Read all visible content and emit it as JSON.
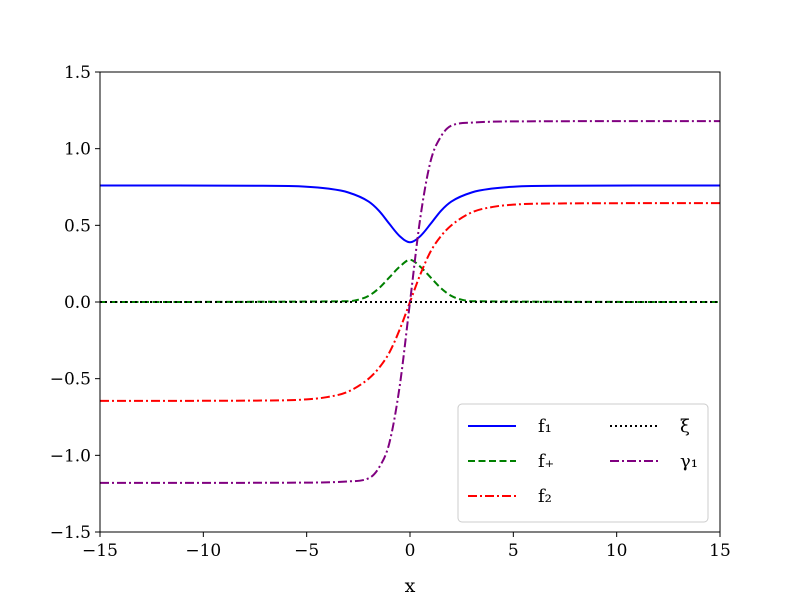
{
  "chart_data": {
    "type": "line",
    "title": "",
    "xlabel": "x",
    "ylabel": "",
    "xlim": [
      -15,
      15
    ],
    "ylim": [
      -1.5,
      1.5
    ],
    "x_ticks": [
      -15,
      -10,
      -5,
      0,
      5,
      10,
      15
    ],
    "x_tick_labels": [
      "−15",
      "−10",
      "−5",
      "0",
      "5",
      "10",
      "15"
    ],
    "y_ticks": [
      -1.5,
      -1.0,
      -0.5,
      0.0,
      0.5,
      1.0,
      1.5
    ],
    "y_tick_labels": [
      "−1.5",
      "−1.0",
      "−0.5",
      "0.0",
      "0.5",
      "1.0",
      "1.5"
    ],
    "grid": false,
    "legend_position": "bottom-right",
    "legend_columns": 2,
    "series": [
      {
        "name": "f₁",
        "color": "#0000ff",
        "style": "solid",
        "points": [
          [
            -15,
            0.76
          ],
          [
            -7.5,
            0.758
          ],
          [
            -5,
            0.752
          ],
          [
            -4,
            0.74
          ],
          [
            -3,
            0.715
          ],
          [
            -2,
            0.655
          ],
          [
            -1.5,
            0.595
          ],
          [
            -1,
            0.51
          ],
          [
            -0.5,
            0.43
          ],
          [
            0,
            0.39
          ],
          [
            0.5,
            0.43
          ],
          [
            1,
            0.51
          ],
          [
            1.5,
            0.595
          ],
          [
            2,
            0.655
          ],
          [
            3,
            0.715
          ],
          [
            4,
            0.74
          ],
          [
            5,
            0.752
          ],
          [
            7.5,
            0.758
          ],
          [
            15,
            0.76
          ]
        ]
      },
      {
        "name": "f₊",
        "color": "#008000",
        "style": "dashed",
        "points": [
          [
            -15,
            0.0
          ],
          [
            -3,
            0.005
          ],
          [
            -2.5,
            0.015
          ],
          [
            -2,
            0.04
          ],
          [
            -1.5,
            0.09
          ],
          [
            -1,
            0.16
          ],
          [
            -0.5,
            0.23
          ],
          [
            0,
            0.275
          ],
          [
            0.5,
            0.23
          ],
          [
            1,
            0.16
          ],
          [
            1.5,
            0.09
          ],
          [
            2,
            0.04
          ],
          [
            2.5,
            0.015
          ],
          [
            3,
            0.005
          ],
          [
            15,
            0.0
          ]
        ]
      },
      {
        "name": "f₂",
        "color": "#ff0000",
        "style": "dashdot",
        "points": [
          [
            -15,
            -0.645
          ],
          [
            -7.5,
            -0.643
          ],
          [
            -5,
            -0.635
          ],
          [
            -4,
            -0.62
          ],
          [
            -3,
            -0.585
          ],
          [
            -2,
            -0.5
          ],
          [
            -1.5,
            -0.43
          ],
          [
            -1,
            -0.33
          ],
          [
            -0.5,
            -0.18
          ],
          [
            0,
            0.0
          ],
          [
            0.5,
            0.18
          ],
          [
            1,
            0.33
          ],
          [
            1.5,
            0.43
          ],
          [
            2,
            0.5
          ],
          [
            3,
            0.585
          ],
          [
            4,
            0.62
          ],
          [
            5,
            0.635
          ],
          [
            7.5,
            0.643
          ],
          [
            15,
            0.645
          ]
        ]
      },
      {
        "name": "ξ",
        "color": "#000000",
        "style": "dotted",
        "points": [
          [
            -15,
            0.0
          ],
          [
            15,
            0.0
          ]
        ]
      },
      {
        "name": "γ₁",
        "color": "#800080",
        "style": "dashdot",
        "points": [
          [
            -15,
            -1.18
          ],
          [
            -5,
            -1.178
          ],
          [
            -3,
            -1.17
          ],
          [
            -2,
            -1.15
          ],
          [
            -1.5,
            -1.08
          ],
          [
            -1,
            -0.92
          ],
          [
            -0.5,
            -0.55
          ],
          [
            0,
            0.0
          ],
          [
            0.5,
            0.55
          ],
          [
            1,
            0.92
          ],
          [
            1.5,
            1.08
          ],
          [
            2,
            1.15
          ],
          [
            3,
            1.17
          ],
          [
            5,
            1.178
          ],
          [
            15,
            1.18
          ]
        ]
      }
    ]
  }
}
